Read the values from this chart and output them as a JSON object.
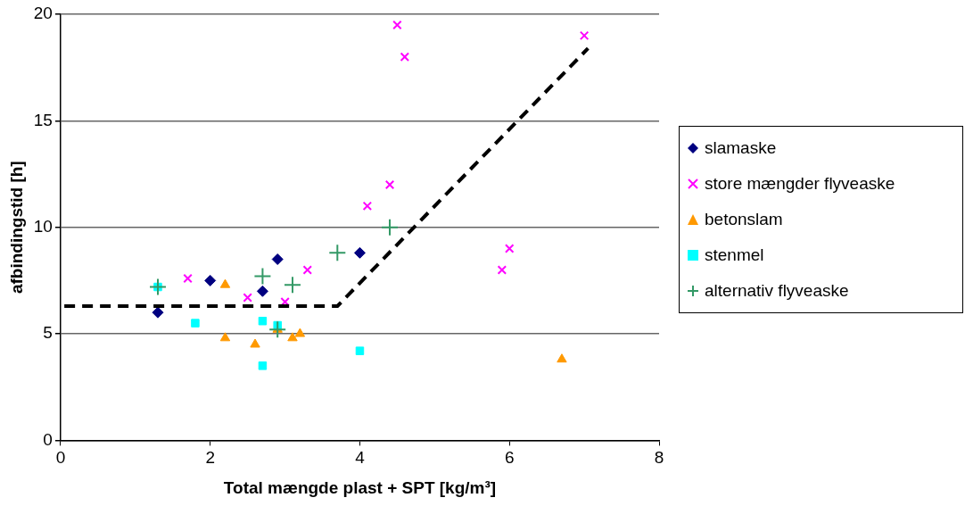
{
  "chart_data": {
    "type": "scatter",
    "xlabel": "Total mængde plast + SPT [kg/m³]",
    "ylabel": "afbindingstid [h]",
    "xlim": [
      0,
      8
    ],
    "xticks": [
      0,
      2,
      4,
      6,
      8
    ],
    "ylim": [
      0,
      20
    ],
    "yticks": [
      0,
      5,
      10,
      15,
      20
    ],
    "grid": "y",
    "legend": "right",
    "series": [
      {
        "name": "slamaske",
        "color": "#000080",
        "marker": "diamond",
        "x": [
          1.3,
          2.0,
          2.7,
          2.9,
          4.0
        ],
        "values": [
          6.0,
          7.5,
          7.0,
          8.5,
          8.8
        ]
      },
      {
        "name": "store mængder flyveaske",
        "color": "#ff00ff",
        "marker": "x",
        "x": [
          1.7,
          2.5,
          3.0,
          3.3,
          4.1,
          4.4,
          4.5,
          4.6,
          5.9,
          6.0,
          7.0
        ],
        "values": [
          7.6,
          6.7,
          6.5,
          8.0,
          11.0,
          12.0,
          19.5,
          18.0,
          8.0,
          9.0,
          19.0
        ]
      },
      {
        "name": "betonslam",
        "color": "#ff9900",
        "marker": "triangle",
        "x": [
          2.2,
          2.2,
          2.6,
          2.9,
          3.1,
          3.2,
          6.7
        ],
        "values": [
          7.3,
          4.8,
          4.5,
          5.2,
          4.8,
          5.0,
          3.8
        ]
      },
      {
        "name": "stenmel",
        "color": "#00ffff",
        "marker": "square",
        "x": [
          1.3,
          1.8,
          2.7,
          2.9,
          2.7,
          4.0
        ],
        "values": [
          7.2,
          5.5,
          5.6,
          5.4,
          3.5,
          4.2
        ]
      },
      {
        "name": "alternativ flyveaske",
        "color": "#339966",
        "marker": "cross",
        "x": [
          1.3,
          2.7,
          2.9,
          3.1,
          3.7,
          4.4
        ],
        "values": [
          7.2,
          7.7,
          5.2,
          7.3,
          8.8,
          10.0
        ]
      },
      {
        "type": "line",
        "color": "#000000",
        "line_style": "dashed",
        "marker": "none",
        "x": [
          0.05,
          3.7,
          7.05
        ],
        "values": [
          6.3,
          6.3,
          18.4
        ]
      }
    ]
  }
}
